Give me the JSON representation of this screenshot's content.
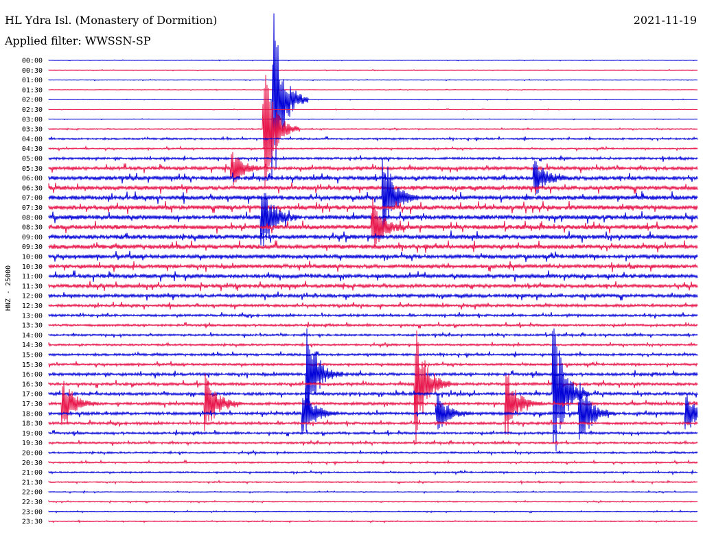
{
  "header": {
    "station": "HL Ydra Isl. (Monastery of Dormition)",
    "date": "2021-11-19",
    "filter": "Applied filter: WWSSN-SP"
  },
  "chart_data": {
    "type": "line",
    "chart_kind": "helicorder",
    "ylabel": "HNZ - 25000",
    "row_labels": [
      "00:00",
      "00:30",
      "01:00",
      "01:30",
      "02:00",
      "02:30",
      "03:00",
      "03:30",
      "04:00",
      "04:30",
      "05:00",
      "05:30",
      "06:00",
      "06:30",
      "07:00",
      "07:30",
      "08:00",
      "08:30",
      "09:00",
      "09:30",
      "10:00",
      "10:30",
      "11:00",
      "11:30",
      "12:00",
      "12:30",
      "13:00",
      "13:30",
      "14:00",
      "14:30",
      "15:00",
      "15:30",
      "16:00",
      "16:30",
      "17:00",
      "17:30",
      "18:00",
      "18:30",
      "19:00",
      "19:30",
      "20:00",
      "20:30",
      "21:00",
      "21:30",
      "22:00",
      "22:30",
      "23:00",
      "23:30"
    ],
    "trace_colors": [
      "#0000d8",
      "#e8154a"
    ],
    "noise_levels": [
      0.15,
      0.15,
      0.2,
      0.15,
      0.15,
      0.15,
      0.15,
      0.3,
      0.6,
      0.5,
      0.8,
      1.2,
      1.4,
      1.5,
      1.6,
      1.6,
      1.6,
      1.6,
      1.6,
      1.6,
      1.4,
      1.4,
      1.4,
      1.3,
      1.2,
      1.0,
      0.8,
      0.8,
      0.7,
      0.7,
      0.8,
      0.8,
      1.0,
      1.0,
      1.0,
      1.0,
      1.0,
      0.9,
      0.8,
      0.7,
      0.6,
      0.5,
      0.5,
      0.4,
      0.3,
      0.3,
      0.3,
      0.3
    ],
    "events": [
      {
        "time": "02:00",
        "minute": 10.4,
        "amplitude": 130
      },
      {
        "time": "03:30",
        "minute": 10.0,
        "amplitude": 90
      },
      {
        "time": "05:30",
        "minute": 8.5,
        "amplitude": 28
      },
      {
        "time": "06:00",
        "minute": 22.5,
        "amplitude": 30
      },
      {
        "time": "07:00",
        "minute": 15.5,
        "amplitude": 70
      },
      {
        "time": "08:00",
        "minute": 9.9,
        "amplitude": 50
      },
      {
        "time": "08:30",
        "minute": 15.0,
        "amplitude": 40
      },
      {
        "time": "16:00",
        "minute": 12.0,
        "amplitude": 70
      },
      {
        "time": "16:30",
        "minute": 17.0,
        "amplitude": 90
      },
      {
        "time": "17:00",
        "minute": 23.4,
        "amplitude": 100
      },
      {
        "time": "17:30",
        "minute": 0.7,
        "amplitude": 40
      },
      {
        "time": "17:30",
        "minute": 7.3,
        "amplitude": 45
      },
      {
        "time": "17:30",
        "minute": 21.2,
        "amplitude": 50
      },
      {
        "time": "18:00",
        "minute": 11.8,
        "amplitude": 45
      },
      {
        "time": "18:00",
        "minute": 18.0,
        "amplitude": 30
      },
      {
        "time": "18:00",
        "minute": 24.6,
        "amplitude": 50
      },
      {
        "time": "18:00",
        "minute": 29.5,
        "amplitude": 30
      }
    ]
  }
}
